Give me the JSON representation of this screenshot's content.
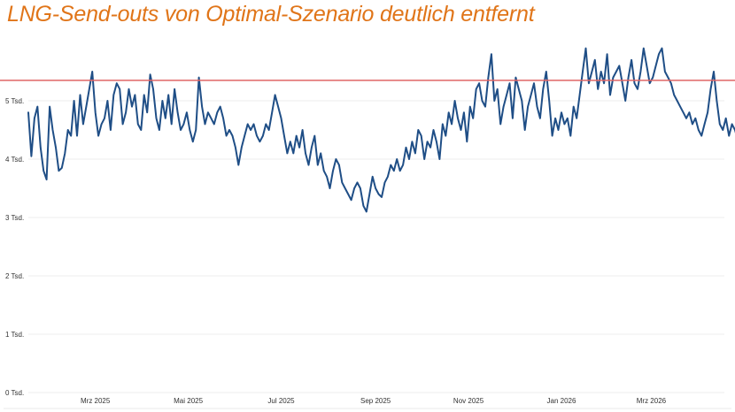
{
  "chart_data": {
    "type": "line",
    "title": "LNG-Send-outs von Optimal-Szenario deutlich entfernt",
    "xlabel": "",
    "ylabel": "",
    "ylim": [
      0,
      6000
    ],
    "yticks": [
      0,
      1000,
      2000,
      3000,
      4000,
      5000
    ],
    "ytick_labels": [
      "0 Tsd.",
      "1 Tsd.",
      "2 Tsd.",
      "3 Tsd.",
      "4 Tsd.",
      "5 Tsd."
    ],
    "x_start": "2025-01-16",
    "x_end": "2026-04-18",
    "xtick_labels": [
      {
        "date": "2025-03-01",
        "label": "Mrz 2025"
      },
      {
        "date": "2025-05-01",
        "label": "Mai 2025"
      },
      {
        "date": "2025-07-01",
        "label": "Jul 2025"
      },
      {
        "date": "2025-09-01",
        "label": "Sep 2025"
      },
      {
        "date": "2025-11-01",
        "label": "Nov 2025"
      },
      {
        "date": "2026-01-01",
        "label": "Jan 2026"
      },
      {
        "date": "2026-03-01",
        "label": "Mrz 2026"
      }
    ],
    "reference_line": {
      "value": 5350,
      "color": "#e06666"
    },
    "series": [
      {
        "name": "LNG-Send-outs",
        "color": "#1f4e86",
        "start_date": "2025-01-16",
        "step_days": 2,
        "values": [
          4800,
          4050,
          4700,
          4900,
          4200,
          3800,
          3650,
          4900,
          4500,
          4200,
          3800,
          3850,
          4100,
          4500,
          4400,
          5000,
          4400,
          5100,
          4600,
          4900,
          5200,
          5500,
          4800,
          4400,
          4600,
          4700,
          5000,
          4500,
          5100,
          5300,
          5200,
          4600,
          4800,
          5200,
          4900,
          5100,
          4600,
          4500,
          5100,
          4800,
          5450,
          5200,
          4700,
          4500,
          5000,
          4700,
          5100,
          4600,
          5200,
          4800,
          4500,
          4600,
          4800,
          4500,
          4300,
          4500,
          5400,
          4900,
          4600,
          4800,
          4700,
          4600,
          4800,
          4900,
          4700,
          4400,
          4500,
          4400,
          4200,
          3900,
          4200,
          4400,
          4600,
          4500,
          4600,
          4400,
          4300,
          4400,
          4600,
          4500,
          4800,
          5100,
          4900,
          4700,
          4400,
          4100,
          4300,
          4100,
          4400,
          4200,
          4500,
          4100,
          3900,
          4200,
          4400,
          3900,
          4100,
          3800,
          3700,
          3500,
          3800,
          4000,
          3900,
          3600,
          3500,
          3400,
          3300,
          3500,
          3600,
          3500,
          3200,
          3100,
          3400,
          3700,
          3500,
          3400,
          3350,
          3600,
          3700,
          3900,
          3800,
          4000,
          3800,
          3900,
          4200,
          4000,
          4300,
          4100,
          4500,
          4400,
          4000,
          4300,
          4200,
          4500,
          4300,
          4000,
          4600,
          4400,
          4800,
          4600,
          5000,
          4700,
          4500,
          4800,
          4300,
          4900,
          4700,
          5200,
          5300,
          5000,
          4900,
          5400,
          5800,
          5000,
          5200,
          4600,
          4900,
          5100,
          5300,
          4700,
          5400,
          5200,
          5000,
          4500,
          4900,
          5100,
          5300,
          4900,
          4700,
          5200,
          5500,
          5000,
          4400,
          4700,
          4500,
          4800,
          4600,
          4700,
          4400,
          4900,
          4700,
          5100,
          5500,
          5900,
          5300,
          5500,
          5700,
          5200,
          5500,
          5300,
          5800,
          5100,
          5400,
          5500,
          5600,
          5300,
          5000,
          5400,
          5700,
          5300,
          5200,
          5500,
          5900,
          5600,
          5300,
          5400,
          5600,
          5800,
          5900,
          5500,
          5400,
          5300,
          5100,
          5000,
          4900,
          4800,
          4700,
          4800,
          4600,
          4700,
          4500,
          4400,
          4600,
          4800,
          5200,
          5500,
          5000,
          4600,
          4500,
          4700,
          4400,
          4600,
          4500,
          4300,
          4600,
          4800,
          4500,
          4200,
          4600
        ]
      }
    ]
  }
}
